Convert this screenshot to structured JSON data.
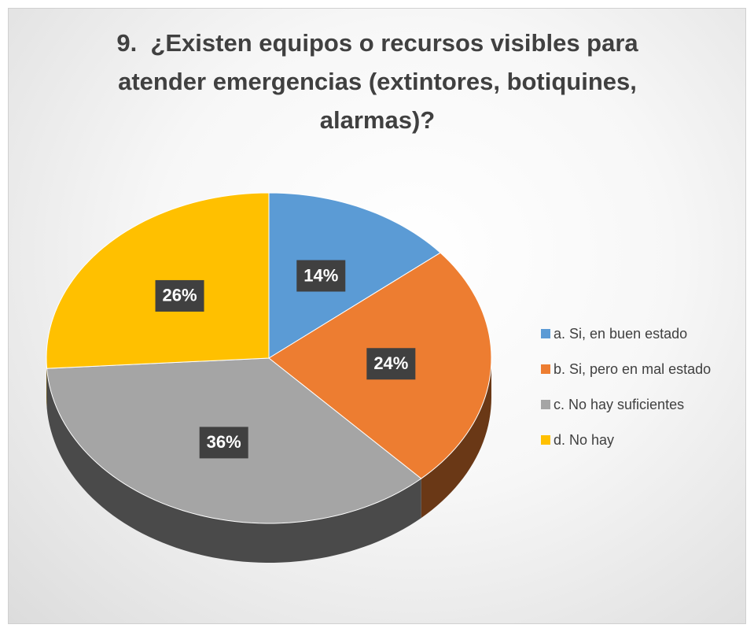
{
  "chart_data": {
    "type": "pie",
    "title": "9.  ¿Existen equipos o recursos visibles para atender emergencias (extintores, botiquines, alarmas)?",
    "categories": [
      "a. Si, en buen estado",
      "b. Si, pero en mal estado",
      "c. No hay suficientes",
      "d. No hay"
    ],
    "values": [
      14,
      24,
      36,
      26
    ],
    "value_labels": [
      "14%",
      "24%",
      "36%",
      "26%"
    ],
    "colors": [
      "#5b9bd5",
      "#ed7d31",
      "#a5a5a5",
      "#ffc000"
    ],
    "legend": "right"
  }
}
